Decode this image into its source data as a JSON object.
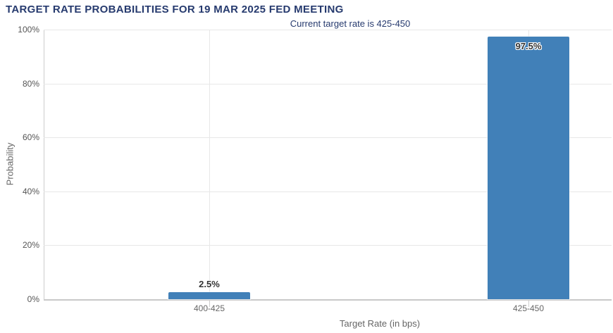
{
  "chart_data": {
    "type": "bar",
    "title": "TARGET RATE PROBABILITIES FOR 19 MAR 2025 FED MEETING",
    "subtitle": "Current target rate is 425-450",
    "xlabel": "Target Rate (in bps)",
    "ylabel": "Probability",
    "categories": [
      "400-425",
      "425-450"
    ],
    "values": [
      2.5,
      97.5
    ],
    "value_labels": [
      "2.5%",
      "97.5%"
    ],
    "y_ticks": [
      "100%",
      "80%",
      "60%",
      "40%",
      "20%",
      "0%"
    ],
    "ylim": [
      0,
      100
    ],
    "grid": true,
    "legend": "none",
    "colors": {
      "bar": "#4180b8",
      "title_text": "#263a6e",
      "axis_text": "#666666",
      "tick_text": "#555555",
      "gridline": "#e7e7e7",
      "axis_line": "#c9c9c9",
      "background": "#ffffff"
    }
  }
}
